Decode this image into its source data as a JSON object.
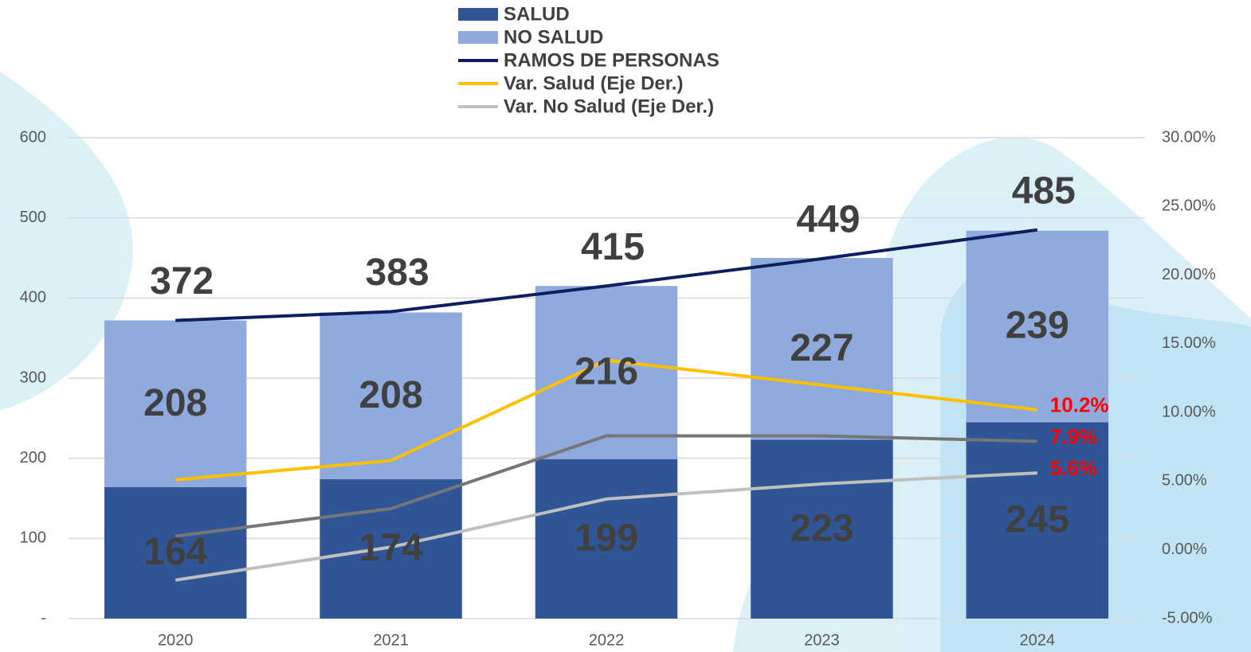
{
  "chart_data": {
    "type": "bar",
    "stacked": true,
    "categories": [
      "2020",
      "2021",
      "2022",
      "2023",
      "2024"
    ],
    "series": [
      {
        "name": "SALUD",
        "type": "bar",
        "color": "#2f5597",
        "values": [
          164,
          174,
          199,
          223,
          245
        ]
      },
      {
        "name": "NO SALUD",
        "type": "bar",
        "color": "#8faadc",
        "values": [
          208,
          208,
          216,
          227,
          239
        ]
      },
      {
        "name": "RAMOS DE PERSONAS",
        "type": "line",
        "color": "#0d1f5e",
        "values": [
          372,
          383,
          415,
          449,
          485
        ]
      },
      {
        "name": "Var. Salud (Eje Der.)",
        "type": "line",
        "axis": "y2",
        "color": "#ffc000",
        "values": [
          5.1,
          6.5,
          13.8,
          12.0,
          10.2
        ],
        "value_labels": [
          null,
          null,
          null,
          null,
          "10.2%"
        ]
      },
      {
        "type": "line",
        "axis": "y2",
        "color": "#767676",
        "values": [
          1.0,
          3.0,
          8.3,
          8.3,
          7.9
        ],
        "value_labels": [
          null,
          null,
          null,
          null,
          "7.9%"
        ]
      },
      {
        "name": "Var. No Salud (Eje Der.)",
        "type": "line",
        "axis": "y2",
        "color": "#bfbfbf",
        "values": [
          -2.2,
          0.2,
          3.7,
          4.8,
          5.6
        ],
        "value_labels": [
          null,
          null,
          null,
          null,
          "5.6%"
        ]
      }
    ],
    "ylim": [
      0,
      600
    ],
    "yticks": [
      {
        "value": 0,
        "label": "-"
      },
      100,
      200,
      300,
      400,
      500,
      600
    ],
    "y2lim": [
      -5,
      30
    ],
    "y2ticks": [
      {
        "value": -5,
        "label": "-5.00%"
      },
      {
        "value": 0,
        "label": "0.00%"
      },
      {
        "value": 5,
        "label": "5.00%"
      },
      {
        "value": 10,
        "label": "10.00%"
      },
      {
        "value": 15,
        "label": "15.00%"
      },
      {
        "value": 20,
        "label": "20.00%"
      },
      {
        "value": 25,
        "label": "25.00%"
      },
      {
        "value": 30,
        "label": "30.00%"
      }
    ],
    "grid": true,
    "legend": "top"
  }
}
